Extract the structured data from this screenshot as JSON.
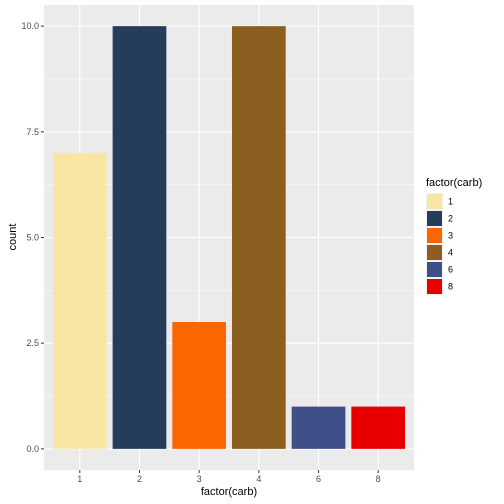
{
  "chart_data": {
    "type": "bar",
    "categories": [
      "1",
      "2",
      "3",
      "4",
      "6",
      "8"
    ],
    "values": [
      7,
      10,
      3,
      10,
      1,
      1
    ],
    "colors": [
      "#F8E7A4",
      "#253D5B",
      "#FA6600",
      "#8A5F20",
      "#3F5088",
      "#E80000"
    ],
    "xlabel": "factor(carb)",
    "ylabel": "count",
    "ylim": [
      -0.5,
      10.5
    ],
    "yticks": [
      0,
      2.5,
      5,
      7.5,
      10
    ],
    "ytick_labels": [
      "0.0",
      "2.5",
      "5.0",
      "7.5",
      "10.0"
    ],
    "grid": true,
    "legend": {
      "title": "factor(carb)",
      "position": "right",
      "entries": [
        "1",
        "2",
        "3",
        "4",
        "6",
        "8"
      ]
    },
    "panel_background": "#EBEBEB",
    "grid_color": "#FFFFFF"
  }
}
